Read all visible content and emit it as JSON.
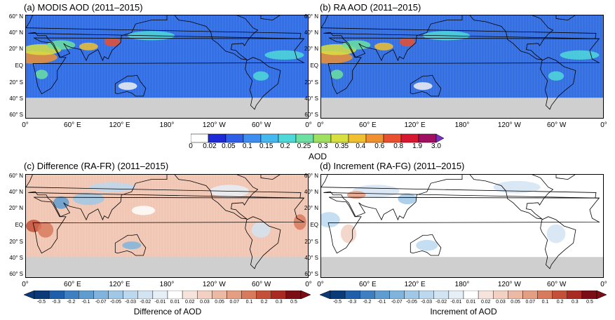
{
  "panels": [
    {
      "title": "(a) MODIS AOD (2011–2015)"
    },
    {
      "title": "(b) RA AOD (2011–2015)"
    },
    {
      "title": "(c) Difference (RA-FR) (2011–2015)"
    },
    {
      "title": "(d) Increment (RA-FG) (2011–2015)"
    }
  ],
  "lat_labels": [
    "60° N",
    "40° N",
    "20° N",
    "EQ",
    "20° S",
    "40° S",
    "60° S"
  ],
  "lon_labels": [
    "0°",
    "60° E",
    "120° E",
    "180°",
    "120° W",
    "60° W",
    "0°"
  ],
  "aod_colorbar": {
    "title": "AOD",
    "ticks": [
      "0",
      "0.02",
      "0.05",
      "0.1",
      "0.15",
      "0.2",
      "0.25",
      "0.3",
      "0.35",
      "0.4",
      "0.6",
      "0.8",
      "1.9",
      "3.0"
    ],
    "colors": [
      "#ffffff",
      "#1e2ad8",
      "#2f5fe8",
      "#3d8ef0",
      "#45b8f0",
      "#4fd8d8",
      "#6be0a0",
      "#a0e060",
      "#d8e040",
      "#f0c030",
      "#f09030",
      "#e85030",
      "#d81830",
      "#a01060"
    ]
  },
  "diff_colorbar": {
    "title": "Difference of AOD",
    "ticks": [
      "-0.5",
      "-0.3",
      "-0.2",
      "-0.1",
      "-0.07",
      "-0.05",
      "-0.03",
      "-0.02",
      "-0.01",
      "0.01",
      "0.02",
      "0.03",
      "0.05",
      "0.07",
      "0.1",
      "0.2",
      "0.3",
      "0.5"
    ]
  },
  "incr_colorbar": {
    "title": "Increment of AOD",
    "ticks": [
      "-0.5",
      "-0.3",
      "-0.2",
      "-0.1",
      "-0.07",
      "-0.05",
      "-0.03",
      "-0.02",
      "-0.01",
      "0.01",
      "0.02",
      "0.03",
      "0.05",
      "0.07",
      "0.1",
      "0.2",
      "0.3",
      "0.5"
    ]
  },
  "div_colors": [
    "#0b3a78",
    "#1f5ea8",
    "#3d7fc0",
    "#5f9cd0",
    "#80b4dc",
    "#a0c8e6",
    "#bcd8ee",
    "#d2e4f2",
    "#e6eef6",
    "#ffffff",
    "#f6e4dc",
    "#f2d0c2",
    "#ecbaa4",
    "#e49e82",
    "#d87a5e",
    "#c4503a",
    "#a82a22",
    "#7a0e14"
  ],
  "colors": {
    "land_nodata": "#cfcfcf",
    "coast": "#000000",
    "ocean_aod": "#3470e4"
  }
}
